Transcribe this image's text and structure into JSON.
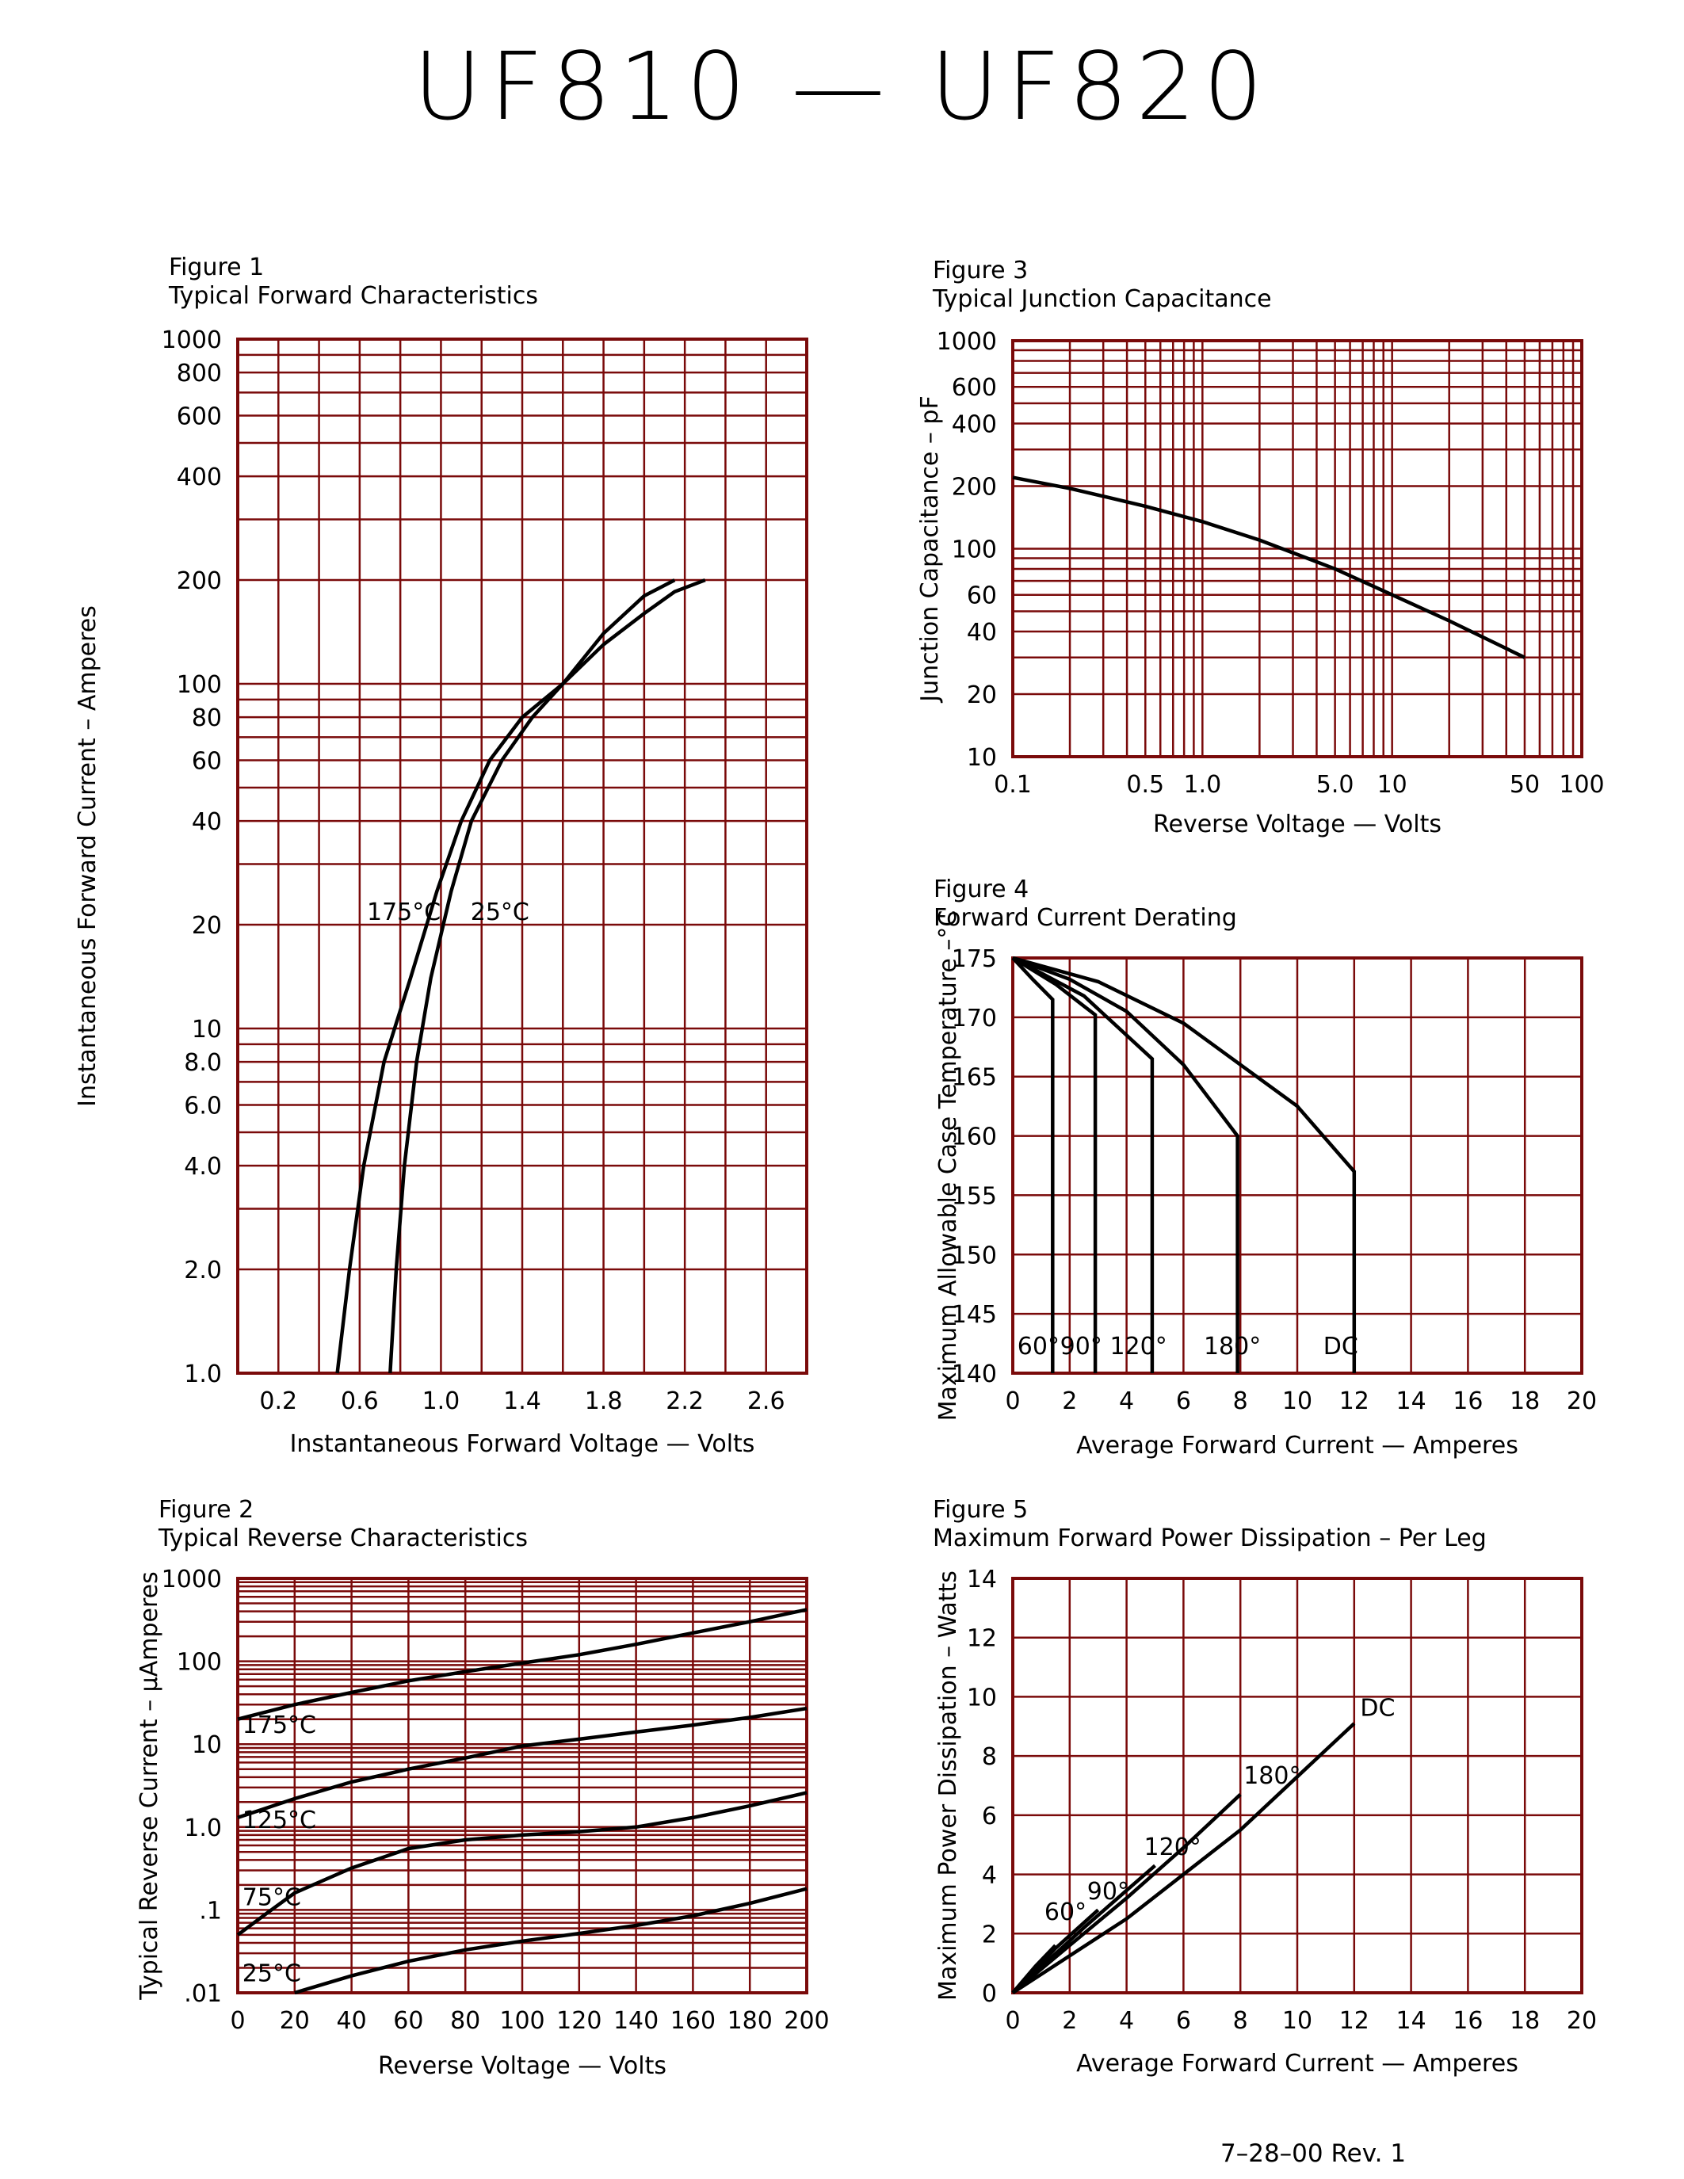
{
  "page_title": "UF810 — UF820",
  "footer": "7–28–00    Rev. 1",
  "colors": {
    "grid": "#7a0a0a",
    "curve": "#000000"
  },
  "chart_data": [
    {
      "id": "fig1",
      "figure_label": "Figure 1",
      "title": "Typical Forward Characteristics",
      "type": "line",
      "xlabel": "Instantaneous Forward Voltage — Volts",
      "ylabel": "Instantaneous Forward Current – Amperes",
      "xscale": "linear",
      "yscale": "log",
      "xlim": [
        0,
        2.8
      ],
      "ylim": [
        1,
        1000
      ],
      "xticks": [
        {
          "v": 0.2,
          "t": "0.2"
        },
        {
          "v": 0.6,
          "t": "0.6"
        },
        {
          "v": 1.0,
          "t": "1.0"
        },
        {
          "v": 1.4,
          "t": "1.4"
        },
        {
          "v": 1.8,
          "t": "1.8"
        },
        {
          "v": 2.2,
          "t": "2.2"
        },
        {
          "v": 2.6,
          "t": "2.6"
        }
      ],
      "yticks": [
        {
          "v": 1,
          "t": "1.0"
        },
        {
          "v": 2,
          "t": "2.0"
        },
        {
          "v": 4,
          "t": "4.0"
        },
        {
          "v": 6,
          "t": "6.0"
        },
        {
          "v": 8,
          "t": "8.0"
        },
        {
          "v": 10,
          "t": "10"
        },
        {
          "v": 20,
          "t": "20"
        },
        {
          "v": 40,
          "t": "40"
        },
        {
          "v": 60,
          "t": "60"
        },
        {
          "v": 80,
          "t": "80"
        },
        {
          "v": 100,
          "t": "100"
        },
        {
          "v": 200,
          "t": "200"
        },
        {
          "v": 400,
          "t": "400"
        },
        {
          "v": 600,
          "t": "600"
        },
        {
          "v": 800,
          "t": "800"
        },
        {
          "v": 1000,
          "t": "1000"
        }
      ],
      "xgrid": [
        0,
        0.2,
        0.4,
        0.6,
        0.8,
        1.0,
        1.2,
        1.4,
        1.6,
        1.8,
        2.0,
        2.2,
        2.4,
        2.6,
        2.8
      ],
      "ygrid": [
        1,
        2,
        3,
        4,
        5,
        6,
        7,
        8,
        9,
        10,
        20,
        30,
        40,
        50,
        60,
        70,
        80,
        90,
        100,
        200,
        300,
        400,
        500,
        600,
        700,
        800,
        900,
        1000
      ],
      "series": [
        {
          "name": "175°C",
          "x": [
            0.49,
            0.55,
            0.62,
            0.72,
            0.85,
            0.98,
            1.1,
            1.24,
            1.4,
            1.6,
            1.8,
            2.0,
            2.15
          ],
          "y": [
            1.0,
            2.0,
            4.0,
            8.0,
            14,
            25,
            40,
            60,
            80,
            100,
            140,
            180,
            200
          ]
        },
        {
          "name": "25°C",
          "x": [
            0.75,
            0.78,
            0.82,
            0.88,
            0.95,
            1.05,
            1.15,
            1.3,
            1.45,
            1.6,
            1.8,
            2.0,
            2.15,
            2.3
          ],
          "y": [
            1.0,
            2.0,
            4.0,
            8.0,
            14,
            25,
            40,
            60,
            80,
            100,
            130,
            160,
            185,
            200
          ]
        }
      ],
      "annotations": [
        {
          "text": "175°C",
          "x": 0.62,
          "y": 20
        },
        {
          "text": "25°C",
          "x": 1.13,
          "y": 20
        }
      ]
    },
    {
      "id": "fig2",
      "figure_label": "Figure 2",
      "title": "Typical Reverse Characteristics",
      "type": "line",
      "xlabel": "Reverse Voltage — Volts",
      "ylabel": "Typical Reverse Current – µAmperes",
      "xscale": "linear",
      "yscale": "log",
      "xlim": [
        0,
        200
      ],
      "ylim": [
        0.01,
        1000
      ],
      "xticks": [
        {
          "v": 0,
          "t": "0"
        },
        {
          "v": 20,
          "t": "20"
        },
        {
          "v": 40,
          "t": "40"
        },
        {
          "v": 60,
          "t": "60"
        },
        {
          "v": 80,
          "t": "80"
        },
        {
          "v": 100,
          "t": "100"
        },
        {
          "v": 120,
          "t": "120"
        },
        {
          "v": 140,
          "t": "140"
        },
        {
          "v": 160,
          "t": "160"
        },
        {
          "v": 180,
          "t": "180"
        },
        {
          "v": 200,
          "t": "200"
        }
      ],
      "yticks": [
        {
          "v": 0.01,
          "t": ".01"
        },
        {
          "v": 0.1,
          "t": ".1"
        },
        {
          "v": 1,
          "t": "1.0"
        },
        {
          "v": 10,
          "t": "10"
        },
        {
          "v": 100,
          "t": "100"
        },
        {
          "v": 1000,
          "t": "1000"
        }
      ],
      "xgrid": [
        0,
        20,
        40,
        60,
        80,
        100,
        120,
        140,
        160,
        180,
        200
      ],
      "ygrid": [
        0.01,
        0.02,
        0.03,
        0.04,
        0.05,
        0.06,
        0.07,
        0.08,
        0.09,
        0.1,
        0.2,
        0.3,
        0.4,
        0.5,
        0.6,
        0.7,
        0.8,
        0.9,
        1,
        2,
        3,
        4,
        5,
        6,
        7,
        8,
        9,
        10,
        20,
        30,
        40,
        50,
        60,
        70,
        80,
        90,
        100,
        200,
        300,
        400,
        500,
        600,
        700,
        800,
        900,
        1000
      ],
      "series": [
        {
          "name": "175°C",
          "x": [
            0,
            20,
            40,
            60,
            80,
            100,
            120,
            140,
            160,
            180,
            200
          ],
          "y": [
            20,
            30,
            42,
            58,
            75,
            95,
            120,
            160,
            220,
            300,
            420
          ]
        },
        {
          "name": "125°C",
          "x": [
            0,
            20,
            40,
            60,
            80,
            100,
            120,
            140,
            160,
            180,
            200
          ],
          "y": [
            1.3,
            2.2,
            3.5,
            5.0,
            6.8,
            9.5,
            11.5,
            14,
            17,
            21,
            27
          ]
        },
        {
          "name": "75°C",
          "x": [
            0,
            10,
            20,
            40,
            60,
            80,
            100,
            120,
            140,
            160,
            180,
            200
          ],
          "y": [
            0.05,
            0.09,
            0.16,
            0.32,
            0.55,
            0.7,
            0.8,
            0.88,
            1.0,
            1.3,
            1.8,
            2.6
          ]
        },
        {
          "name": "25°C",
          "x": [
            20,
            40,
            60,
            80,
            100,
            120,
            140,
            160,
            180,
            200
          ],
          "y": [
            0.01,
            0.016,
            0.024,
            0.033,
            0.042,
            0.052,
            0.065,
            0.085,
            0.12,
            0.18
          ]
        }
      ],
      "annotations": [
        {
          "text": "175°C",
          "x": 0.5,
          "y": 12
        },
        {
          "text": "125°C",
          "x": 0.5,
          "y": 0.85
        },
        {
          "text": "75°C",
          "x": 0.5,
          "y": 0.1
        },
        {
          "text": "25°C",
          "x": 0.5,
          "y": 0.012
        }
      ]
    },
    {
      "id": "fig3",
      "figure_label": "Figure 3",
      "title": "Typical Junction Capacitance",
      "type": "line",
      "xlabel": "Reverse Voltage — Volts",
      "ylabel": "Junction Capacitance – pF",
      "xscale": "log",
      "yscale": "log",
      "xlim": [
        0.1,
        100
      ],
      "ylim": [
        10,
        1000
      ],
      "xticks": [
        {
          "v": 0.1,
          "t": "0.1"
        },
        {
          "v": 0.5,
          "t": "0.5"
        },
        {
          "v": 1,
          "t": "1.0"
        },
        {
          "v": 5,
          "t": "5.0"
        },
        {
          "v": 10,
          "t": "10"
        },
        {
          "v": 50,
          "t": "50"
        },
        {
          "v": 100,
          "t": "100"
        }
      ],
      "yticks": [
        {
          "v": 10,
          "t": "10"
        },
        {
          "v": 20,
          "t": "20"
        },
        {
          "v": 40,
          "t": "40"
        },
        {
          "v": 60,
          "t": "60"
        },
        {
          "v": 100,
          "t": "100"
        },
        {
          "v": 200,
          "t": "200"
        },
        {
          "v": 400,
          "t": "400"
        },
        {
          "v": 600,
          "t": "600"
        },
        {
          "v": 1000,
          "t": "1000"
        }
      ],
      "xgrid": [
        0.1,
        0.2,
        0.3,
        0.4,
        0.5,
        0.6,
        0.7,
        0.8,
        0.9,
        1,
        2,
        3,
        4,
        5,
        6,
        7,
        8,
        9,
        10,
        20,
        30,
        40,
        50,
        60,
        70,
        80,
        90,
        100
      ],
      "ygrid": [
        10,
        20,
        30,
        40,
        50,
        60,
        70,
        80,
        90,
        100,
        200,
        300,
        400,
        500,
        600,
        700,
        800,
        900,
        1000
      ],
      "series": [
        {
          "name": "",
          "x": [
            0.1,
            0.2,
            0.5,
            1,
            2,
            5,
            10,
            20,
            50
          ],
          "y": [
            220,
            195,
            160,
            135,
            110,
            80,
            60,
            45,
            30
          ]
        }
      ],
      "annotations": []
    },
    {
      "id": "fig4",
      "figure_label": "Figure 4",
      "title": "Forward Current Derating",
      "type": "line",
      "xlabel": "Average Forward Current — Amperes",
      "ylabel": "Maximum Allowable Case Temperature –°C",
      "xscale": "linear",
      "yscale": "linear",
      "xlim": [
        0,
        20
      ],
      "ylim": [
        140,
        175
      ],
      "xticks": [
        {
          "v": 0,
          "t": "0"
        },
        {
          "v": 2,
          "t": "2"
        },
        {
          "v": 4,
          "t": "4"
        },
        {
          "v": 6,
          "t": "6"
        },
        {
          "v": 8,
          "t": "8"
        },
        {
          "v": 10,
          "t": "10"
        },
        {
          "v": 12,
          "t": "12"
        },
        {
          "v": 14,
          "t": "14"
        },
        {
          "v": 16,
          "t": "16"
        },
        {
          "v": 18,
          "t": "18"
        },
        {
          "v": 20,
          "t": "20"
        }
      ],
      "yticks": [
        {
          "v": 140,
          "t": "140"
        },
        {
          "v": 145,
          "t": "145"
        },
        {
          "v": 150,
          "t": "150"
        },
        {
          "v": 155,
          "t": "155"
        },
        {
          "v": 160,
          "t": "160"
        },
        {
          "v": 165,
          "t": "165"
        },
        {
          "v": 170,
          "t": "170"
        },
        {
          "v": 175,
          "t": "175"
        }
      ],
      "xgrid": [
        0,
        2,
        4,
        6,
        8,
        10,
        12,
        14,
        16,
        18,
        20
      ],
      "ygrid": [
        140,
        145,
        150,
        155,
        160,
        165,
        170,
        175
      ],
      "series": [
        {
          "name": "60°",
          "x": [
            0,
            0.7,
            1.4,
            1.4
          ],
          "y": [
            175,
            173.2,
            171.5,
            140
          ]
        },
        {
          "name": "90°",
          "x": [
            0,
            1.5,
            2.9,
            2.9
          ],
          "y": [
            175,
            172.8,
            170.2,
            140
          ]
        },
        {
          "name": "120°",
          "x": [
            0,
            2.5,
            4.9,
            4.9
          ],
          "y": [
            175,
            171.8,
            166.5,
            140
          ]
        },
        {
          "name": "180°",
          "x": [
            0,
            2,
            4,
            6,
            7.9,
            7.9
          ],
          "y": [
            175,
            173.2,
            170.5,
            166,
            160,
            140
          ]
        },
        {
          "name": "DC",
          "x": [
            0,
            3,
            6,
            8,
            10,
            12,
            12
          ],
          "y": [
            175,
            173,
            169.5,
            166,
            162.5,
            157,
            140
          ]
        }
      ],
      "annotations": [
        {
          "text": "60°",
          "x": 0.05,
          "y": 141.2
        },
        {
          "text": "90°",
          "x": 1.55,
          "y": 141.2
        },
        {
          "text": "120°",
          "x": 3.3,
          "y": 141.2
        },
        {
          "text": "180°",
          "x": 6.6,
          "y": 141.2
        },
        {
          "text": "DC",
          "x": 10.8,
          "y": 141.2
        }
      ]
    },
    {
      "id": "fig5",
      "figure_label": "Figure 5",
      "title": "Maximum Forward Power Dissipation – Per Leg",
      "type": "line",
      "xlabel": "Average Forward Current — Amperes",
      "ylabel": "Maximum Power Dissipation – Watts",
      "xscale": "linear",
      "yscale": "linear",
      "xlim": [
        0,
        20
      ],
      "ylim": [
        0,
        14
      ],
      "xticks": [
        {
          "v": 0,
          "t": "0"
        },
        {
          "v": 2,
          "t": "2"
        },
        {
          "v": 4,
          "t": "4"
        },
        {
          "v": 6,
          "t": "6"
        },
        {
          "v": 8,
          "t": "8"
        },
        {
          "v": 10,
          "t": "10"
        },
        {
          "v": 12,
          "t": "12"
        },
        {
          "v": 14,
          "t": "14"
        },
        {
          "v": 16,
          "t": "16"
        },
        {
          "v": 18,
          "t": "18"
        },
        {
          "v": 20,
          "t": "20"
        }
      ],
      "yticks": [
        {
          "v": 0,
          "t": "0"
        },
        {
          "v": 2,
          "t": "2"
        },
        {
          "v": 4,
          "t": "4"
        },
        {
          "v": 6,
          "t": "6"
        },
        {
          "v": 8,
          "t": "8"
        },
        {
          "v": 10,
          "t": "10"
        },
        {
          "v": 12,
          "t": "12"
        },
        {
          "v": 14,
          "t": "14"
        }
      ],
      "xgrid": [
        0,
        2,
        4,
        6,
        8,
        10,
        12,
        14,
        16,
        18,
        20
      ],
      "ygrid": [
        0,
        2,
        4,
        6,
        8,
        10,
        12,
        14
      ],
      "series": [
        {
          "name": "60°",
          "x": [
            0,
            0.8,
            1.5
          ],
          "y": [
            0,
            0.9,
            1.6
          ]
        },
        {
          "name": "90°",
          "x": [
            0,
            1.5,
            3
          ],
          "y": [
            0,
            1.5,
            2.8
          ]
        },
        {
          "name": "120°",
          "x": [
            0,
            2.5,
            5
          ],
          "y": [
            0,
            2.2,
            4.3
          ]
        },
        {
          "name": "180°",
          "x": [
            0,
            2,
            4,
            6,
            8
          ],
          "y": [
            0,
            1.6,
            3.2,
            4.9,
            6.7
          ]
        },
        {
          "name": "DC",
          "x": [
            0,
            4,
            8,
            12
          ],
          "y": [
            0,
            2.5,
            5.5,
            9.1
          ]
        }
      ],
      "annotations": [
        {
          "text": "60°",
          "x": 1.0,
          "y": 2.3
        },
        {
          "text": "90°",
          "x": 2.5,
          "y": 3.0
        },
        {
          "text": "120°",
          "x": 4.5,
          "y": 4.5
        },
        {
          "text": "180°",
          "x": 8.0,
          "y": 6.9
        },
        {
          "text": "DC",
          "x": 12.1,
          "y": 9.2
        }
      ]
    }
  ]
}
